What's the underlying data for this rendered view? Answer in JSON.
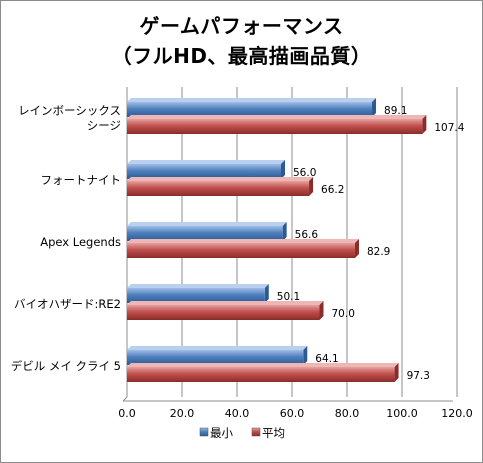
{
  "chart_data": {
    "type": "bar",
    "orientation": "horizontal",
    "title_line1": "ゲームパフォーマンス",
    "title_line2": "（フルHD、最高描画品質）",
    "categories": [
      [
        "レインボーシックス",
        "シージ"
      ],
      [
        "フォートナイト"
      ],
      [
        "Apex Legends"
      ],
      [
        "バイオハザード:RE2"
      ],
      [
        "デビル メイ クライ 5"
      ]
    ],
    "series": [
      {
        "name": "最小",
        "color": "#4f81bd",
        "values": [
          89.1,
          56.0,
          56.6,
          50.1,
          64.1
        ]
      },
      {
        "name": "平均",
        "color": "#c0504d",
        "values": [
          107.4,
          66.2,
          82.9,
          70.0,
          97.3
        ]
      }
    ],
    "value_labels": [
      [
        "89.1",
        "56.0",
        "56.6",
        "50.1",
        "64.1"
      ],
      [
        "107.4",
        "66.2",
        "82.9",
        "70.0",
        "97.3"
      ]
    ],
    "xlim": [
      0,
      120
    ],
    "xticks": [
      "0.0",
      "20.0",
      "40.0",
      "60.0",
      "80.0",
      "100.0",
      "120.0"
    ],
    "legend_position": "bottom",
    "grid": true
  }
}
